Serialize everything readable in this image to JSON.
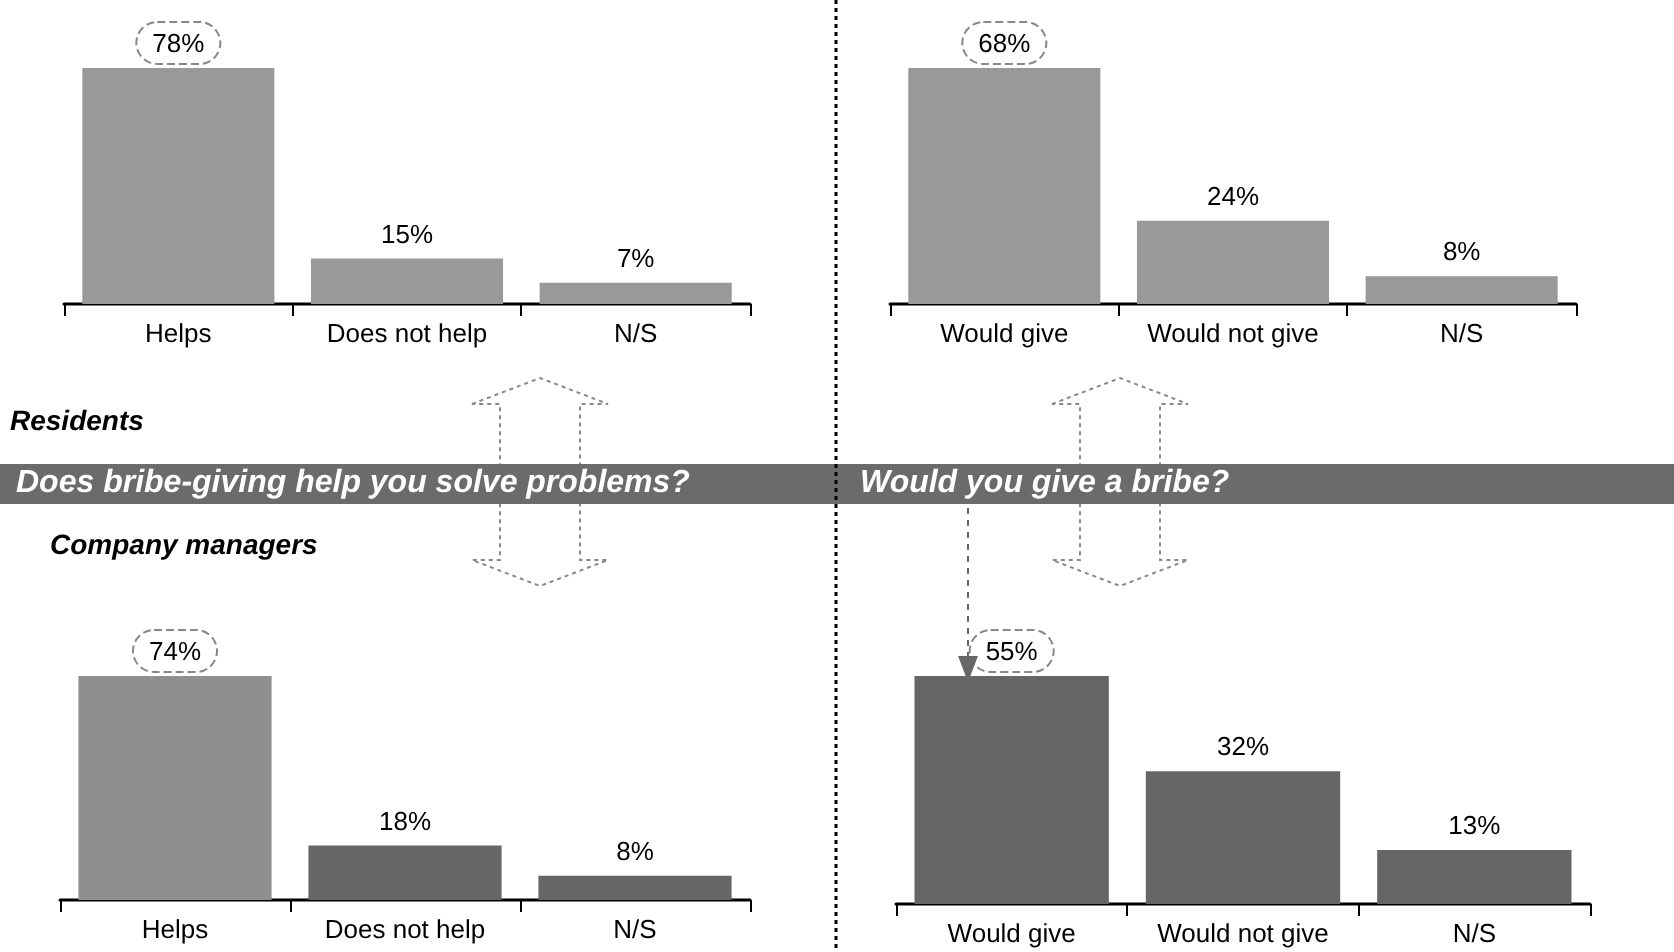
{
  "chart_data": [
    {
      "type": "bar",
      "title": "Does bribe-giving help you solve problems?",
      "annotations": [
        "Residents"
      ],
      "categories": [
        "Helps",
        "Does not help",
        "N/S"
      ],
      "values": [
        78,
        15,
        7
      ],
      "value_labels": [
        "78%",
        "15%",
        "7%"
      ],
      "colors": [
        "#999999",
        "#999999",
        "#999999"
      ],
      "tick_labels": "x",
      "grid": false
    },
    {
      "type": "bar",
      "title": "Would you give a bribe?",
      "categories": [
        "Would give",
        "Would not give",
        "N/S"
      ],
      "values": [
        68,
        24,
        8
      ],
      "value_labels": [
        "68%",
        "24%",
        "8%"
      ],
      "colors": [
        "#999999",
        "#999999",
        "#999999"
      ],
      "tick_labels": "x",
      "grid": false
    },
    {
      "type": "bar",
      "annotations": [
        "Company managers"
      ],
      "categories": [
        "Helps",
        "Does not help",
        "N/S"
      ],
      "values": [
        74,
        18,
        8
      ],
      "value_labels": [
        "74%",
        "18%",
        "8%"
      ],
      "colors": [
        "#8f8f8f",
        "#666666",
        "#666666"
      ],
      "tick_labels": "x",
      "grid": false
    },
    {
      "type": "bar",
      "categories": [
        "Would give",
        "Would not give",
        "N/S"
      ],
      "values": [
        55,
        32,
        13
      ],
      "value_labels": [
        "55%",
        "32%",
        "13%"
      ],
      "colors": [
        "#666666",
        "#666666",
        "#666666"
      ],
      "tick_labels": "x",
      "grid": false
    }
  ]
}
